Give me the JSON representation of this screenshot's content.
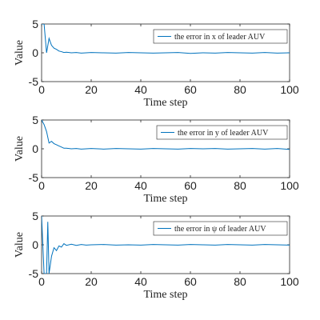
{
  "chart_data": [
    {
      "type": "line",
      "xlabel": "Time step",
      "ylabel": "Value",
      "xlim": [
        0,
        100
      ],
      "ylim": [
        -5,
        5
      ],
      "xticks": [
        "0",
        "20",
        "40",
        "60",
        "80",
        "100"
      ],
      "yticks": [
        "5",
        "0",
        "-5"
      ],
      "legend_position": "top-right",
      "grid": false,
      "series": [
        {
          "name": "the error in x of leader AUV",
          "color": "#0072BD",
          "x": [
            0,
            1,
            2,
            3,
            4,
            5,
            6,
            7,
            8,
            9,
            10,
            12,
            14,
            16,
            18,
            20,
            25,
            30,
            35,
            40,
            45,
            50,
            55,
            60,
            65,
            70,
            75,
            80,
            85,
            90,
            95,
            100
          ],
          "y": [
            5,
            5,
            0,
            2.5,
            1.3,
            0.8,
            0.6,
            0.3,
            0.2,
            0.05,
            0.1,
            0.0,
            0.05,
            -0.05,
            0.0,
            0.05,
            0.0,
            -0.05,
            0.05,
            0.0,
            -0.05,
            0.0,
            0.05,
            -0.1,
            0.0,
            -0.05,
            0.05,
            0.0,
            -0.05,
            0.05,
            -0.05,
            0.0
          ]
        }
      ]
    },
    {
      "type": "line",
      "xlabel": "Time step",
      "ylabel": "Value",
      "xlim": [
        0,
        100
      ],
      "ylim": [
        -5,
        5
      ],
      "xticks": [
        "0",
        "20",
        "40",
        "60",
        "80",
        "100"
      ],
      "yticks": [
        "5",
        "0",
        "-5"
      ],
      "legend_position": "top-right",
      "grid": false,
      "series": [
        {
          "name": "the error in y of leader AUV",
          "color": "#0072BD",
          "x": [
            0,
            1,
            2,
            3,
            4,
            5,
            6,
            7,
            8,
            9,
            10,
            12,
            14,
            16,
            18,
            20,
            25,
            30,
            35,
            40,
            45,
            50,
            55,
            60,
            65,
            70,
            75,
            80,
            85,
            90,
            95,
            100
          ],
          "y": [
            5,
            4.2,
            3.0,
            1.0,
            1.3,
            0.9,
            0.7,
            0.5,
            0.3,
            0.1,
            0.1,
            0.0,
            0.05,
            -0.05,
            0.0,
            0.05,
            -0.05,
            0.05,
            0.0,
            -0.05,
            0.05,
            0.0,
            -0.05,
            0.05,
            0.0,
            0.05,
            -0.05,
            0.0,
            0.05,
            -0.05,
            0.05,
            -0.1
          ]
        }
      ]
    },
    {
      "type": "line",
      "xlabel": "Time step",
      "ylabel": "Value",
      "xlim": [
        0,
        100
      ],
      "ylim": [
        -5,
        5
      ],
      "xticks": [
        "0",
        "20",
        "40",
        "60",
        "80",
        "100"
      ],
      "yticks": [
        "5",
        "0",
        "-5"
      ],
      "legend_position": "top-right",
      "grid": false,
      "series": [
        {
          "name": "the error in ψ of leader AUV",
          "color": "#0072BD",
          "x": [
            0,
            1,
            2,
            2.5,
            3,
            4,
            5,
            6,
            7,
            8,
            9,
            10,
            12,
            14,
            16,
            18,
            20,
            25,
            30,
            35,
            40,
            45,
            50,
            55,
            60,
            65,
            70,
            75,
            80,
            85,
            90,
            95,
            100
          ],
          "y": [
            5,
            -5,
            -5,
            4,
            -5,
            -2.0,
            -0.5,
            -1.0,
            -0.2,
            -0.4,
            0.2,
            -0.1,
            0.1,
            -0.1,
            0.05,
            -0.05,
            0.0,
            0.05,
            -0.05,
            0.0,
            -0.05,
            0.05,
            0.0,
            -0.05,
            0.05,
            0.0,
            -0.05,
            0.05,
            0.0,
            -0.05,
            0.05,
            0.0,
            -0.05
          ]
        }
      ]
    }
  ]
}
